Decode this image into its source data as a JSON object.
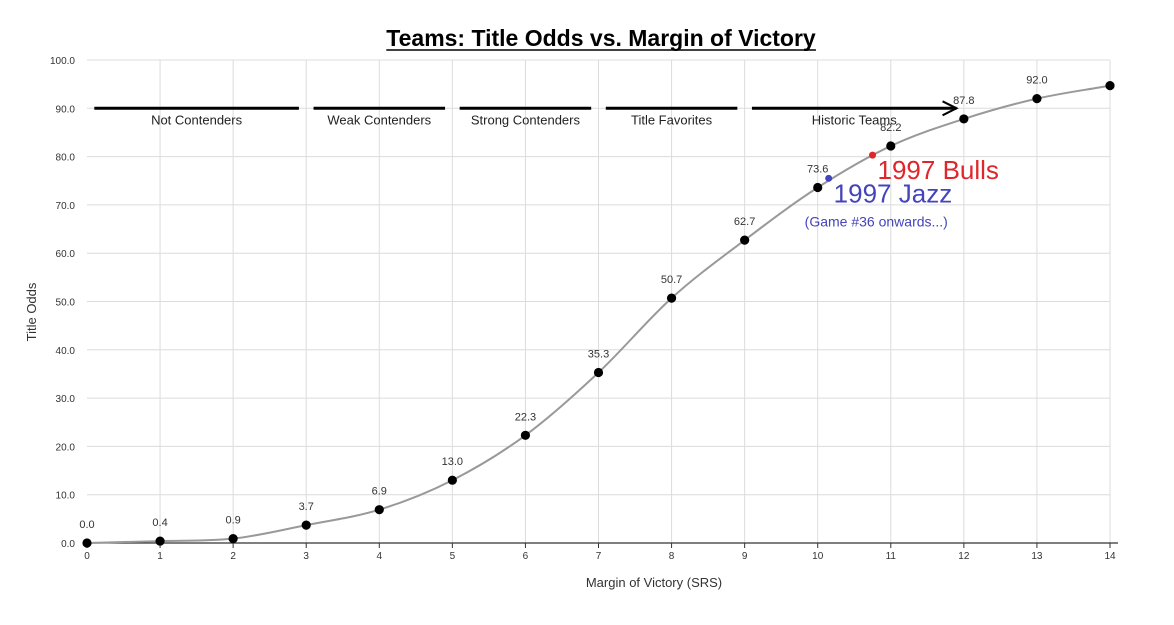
{
  "chart_data": {
    "type": "scatter",
    "title": "Teams: Title Odds vs. Margin of Victory",
    "xlabel": "Margin of Victory (SRS)",
    "ylabel": "Title Odds",
    "xlim": [
      0,
      14
    ],
    "ylim": [
      0,
      100
    ],
    "x_ticks": [
      "0",
      "1",
      "2",
      "3",
      "4",
      "5",
      "6",
      "7",
      "8",
      "9",
      "10",
      "11",
      "12",
      "13",
      "14"
    ],
    "y_ticks": [
      "0.0",
      "10.0",
      "20.0",
      "30.0",
      "40.0",
      "50.0",
      "60.0",
      "70.0",
      "80.0",
      "90.0",
      "100.0"
    ],
    "grid": true,
    "series": [
      {
        "x": [
          0,
          1,
          2,
          3,
          4,
          5,
          6,
          7,
          8,
          9,
          10,
          11,
          12,
          13,
          14
        ],
        "y": [
          0.0,
          0.4,
          0.9,
          3.7,
          6.9,
          13.0,
          22.3,
          35.3,
          50.7,
          62.7,
          73.6,
          82.2,
          87.8,
          92.0,
          94.7
        ],
        "data_labels": [
          "0.0",
          "0.4",
          "0.9",
          "3.7",
          "6.9",
          "13.0",
          "22.3",
          "35.3",
          "50.7",
          "62.7",
          "73.6",
          "82.2",
          "87.8",
          "92.0",
          ""
        ],
        "color": "#000000",
        "trend_color": "#999999"
      }
    ],
    "tiers": [
      {
        "label": "Not Contenders",
        "x_start": 0.1,
        "x_end": 2.9
      },
      {
        "label": "Weak Contenders",
        "x_start": 3.1,
        "x_end": 4.9
      },
      {
        "label": "Strong Contenders",
        "x_start": 5.1,
        "x_end": 6.9
      },
      {
        "label": "Title Favorites",
        "x_start": 7.1,
        "x_end": 8.9
      },
      {
        "label": "Historic Teams",
        "x_start": 9.1,
        "x_end": 11.9,
        "arrow": true
      }
    ],
    "tier_y": 90,
    "annotations": [
      {
        "label": "1997 Bulls",
        "sublabel": "",
        "x": 10.75,
        "y": 80.3,
        "color": "#e0252b"
      },
      {
        "label": "1997 Jazz",
        "sublabel": "(Game #36 onwards...)",
        "x": 10.15,
        "y": 75.5,
        "color": "#4444bb"
      }
    ]
  }
}
